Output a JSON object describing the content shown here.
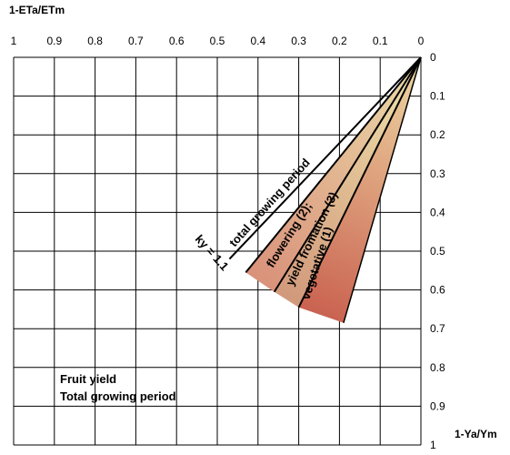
{
  "chart_data": {
    "type": "line",
    "x_axis": {
      "label": "1-ETa/ETm",
      "range": [
        1,
        0
      ],
      "ticks": [
        "1",
        "0.9",
        "0.8",
        "0.7",
        "0.6",
        "0.5",
        "0.4",
        "0.3",
        "0.2",
        "0.1",
        "0"
      ]
    },
    "y_axis": {
      "label": "1-Ya/Ym",
      "range": [
        0,
        1
      ],
      "ticks": [
        "0",
        "0.1",
        "0.2",
        "0.3",
        "0.4",
        "0.5",
        "0.6",
        "0.7",
        "0.8",
        "0.9",
        "1"
      ]
    },
    "grid": true,
    "annotations": {
      "ky": "ky = 1.1",
      "total": "total growing period",
      "flowering": "flowering (2);",
      "yield_formation": "yield fromation (3)",
      "vegetative": "vegetative (1)"
    },
    "note_line1": "Fruit yield",
    "note_line2": "Total growing period",
    "series": [
      {
        "name": "total growing period",
        "points": [
          [
            0,
            0
          ],
          [
            0.47,
            0.52
          ]
        ]
      },
      {
        "name": "flowering (2);",
        "points": [
          [
            0,
            0
          ],
          [
            0.43,
            0.555
          ],
          [
            0.36,
            0.605
          ]
        ],
        "color": "#d9a07a"
      },
      {
        "name": "yield fromation (3)",
        "points": [
          [
            0,
            0
          ],
          [
            0.36,
            0.605
          ],
          [
            0.3,
            0.645
          ]
        ],
        "color": "#d6a880"
      },
      {
        "name": "vegetative (1)",
        "points": [
          [
            0,
            0
          ],
          [
            0.3,
            0.645
          ],
          [
            0.19,
            0.685
          ]
        ],
        "color": "#c96f5c"
      }
    ]
  }
}
